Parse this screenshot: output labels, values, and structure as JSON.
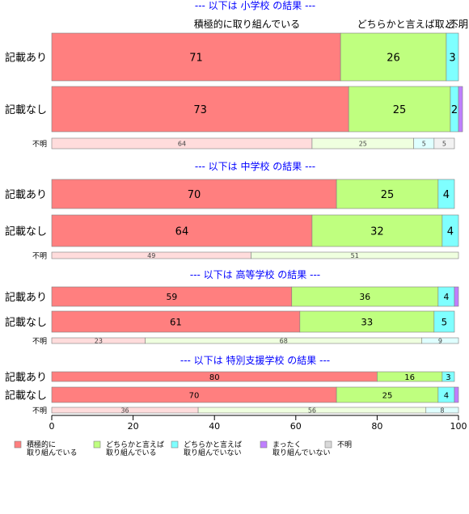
{
  "chart_data": {
    "type": "bar",
    "orientation": "horizontal",
    "stacked": true,
    "xlim": [
      0,
      100
    ],
    "x_ticks": [
      "0",
      "20",
      "40",
      "60",
      "80",
      "100"
    ],
    "series_names": [
      "積極的に取り組んでいる",
      "どちらかと言えば取り組んでいる",
      "どちらかと言えば取り組んでいない",
      "まったく取り組んでいない",
      "不明"
    ],
    "legend_labels": [
      [
        "積極的に",
        "取り組んでいる"
      ],
      [
        "どちらかと言えば",
        "取り組んでいる"
      ],
      [
        "どちらかと言えば",
        "取り組んでいない"
      ],
      [
        "まったく",
        "取り組んでいない"
      ],
      [
        "不明"
      ]
    ],
    "colors": [
      "#ff7f7f",
      "#bfff7f",
      "#7fffff",
      "#bf7fff",
      "#d9d9d9"
    ],
    "light_colors": [
      "#ffdcdc",
      "#efffdf",
      "#dfffff",
      "#efdfff",
      "#f2f2f2"
    ],
    "legend_position": "bottom",
    "top_annotations": [
      {
        "text": "積極的に取り組んでいる",
        "x": 48
      },
      {
        "text": "どちらかと言えば取…",
        "x": 87
      },
      {
        "text": "ど…",
        "x": 99
      },
      {
        "text": "不明",
        "x": 100
      }
    ],
    "panels": [
      {
        "title": "--- 以下は 小学校 の結果 ---",
        "bars": [
          {
            "label": "記載あり",
            "values": [
              71,
              26,
              3,
              0,
              0
            ]
          },
          {
            "label": "記載なし",
            "values": [
              73,
              25,
              2,
              1,
              0
            ]
          }
        ],
        "unknown": {
          "label": "不明",
          "values": [
            64,
            25,
            5,
            0,
            5
          ]
        }
      },
      {
        "title": "--- 以下は 中学校 の結果 ---",
        "bars": [
          {
            "label": "記載あり",
            "values": [
              70,
              25,
              4,
              0,
              0
            ]
          },
          {
            "label": "記載なし",
            "values": [
              64,
              32,
              4,
              0,
              0
            ]
          }
        ],
        "unknown": {
          "label": "不明",
          "values": [
            49,
            51,
            0,
            0,
            0
          ]
        }
      },
      {
        "title": "--- 以下は 高等学校 の結果 ---",
        "bars": [
          {
            "label": "記載あり",
            "values": [
              59,
              36,
              4,
              1,
              0
            ]
          },
          {
            "label": "記載なし",
            "values": [
              61,
              33,
              5,
              0,
              0
            ]
          }
        ],
        "unknown": {
          "label": "不明",
          "values": [
            23,
            68,
            9,
            0,
            0
          ]
        }
      },
      {
        "title": "--- 以下は 特別支援学校 の結果 ---",
        "bars": [
          {
            "label": "記載あり",
            "values": [
              80,
              16,
              3,
              0,
              0
            ]
          },
          {
            "label": "記載なし",
            "values": [
              70,
              25,
              4,
              1,
              0
            ]
          }
        ],
        "unknown": {
          "label": "不明",
          "values": [
            36,
            56,
            8,
            0,
            0
          ]
        }
      }
    ]
  }
}
